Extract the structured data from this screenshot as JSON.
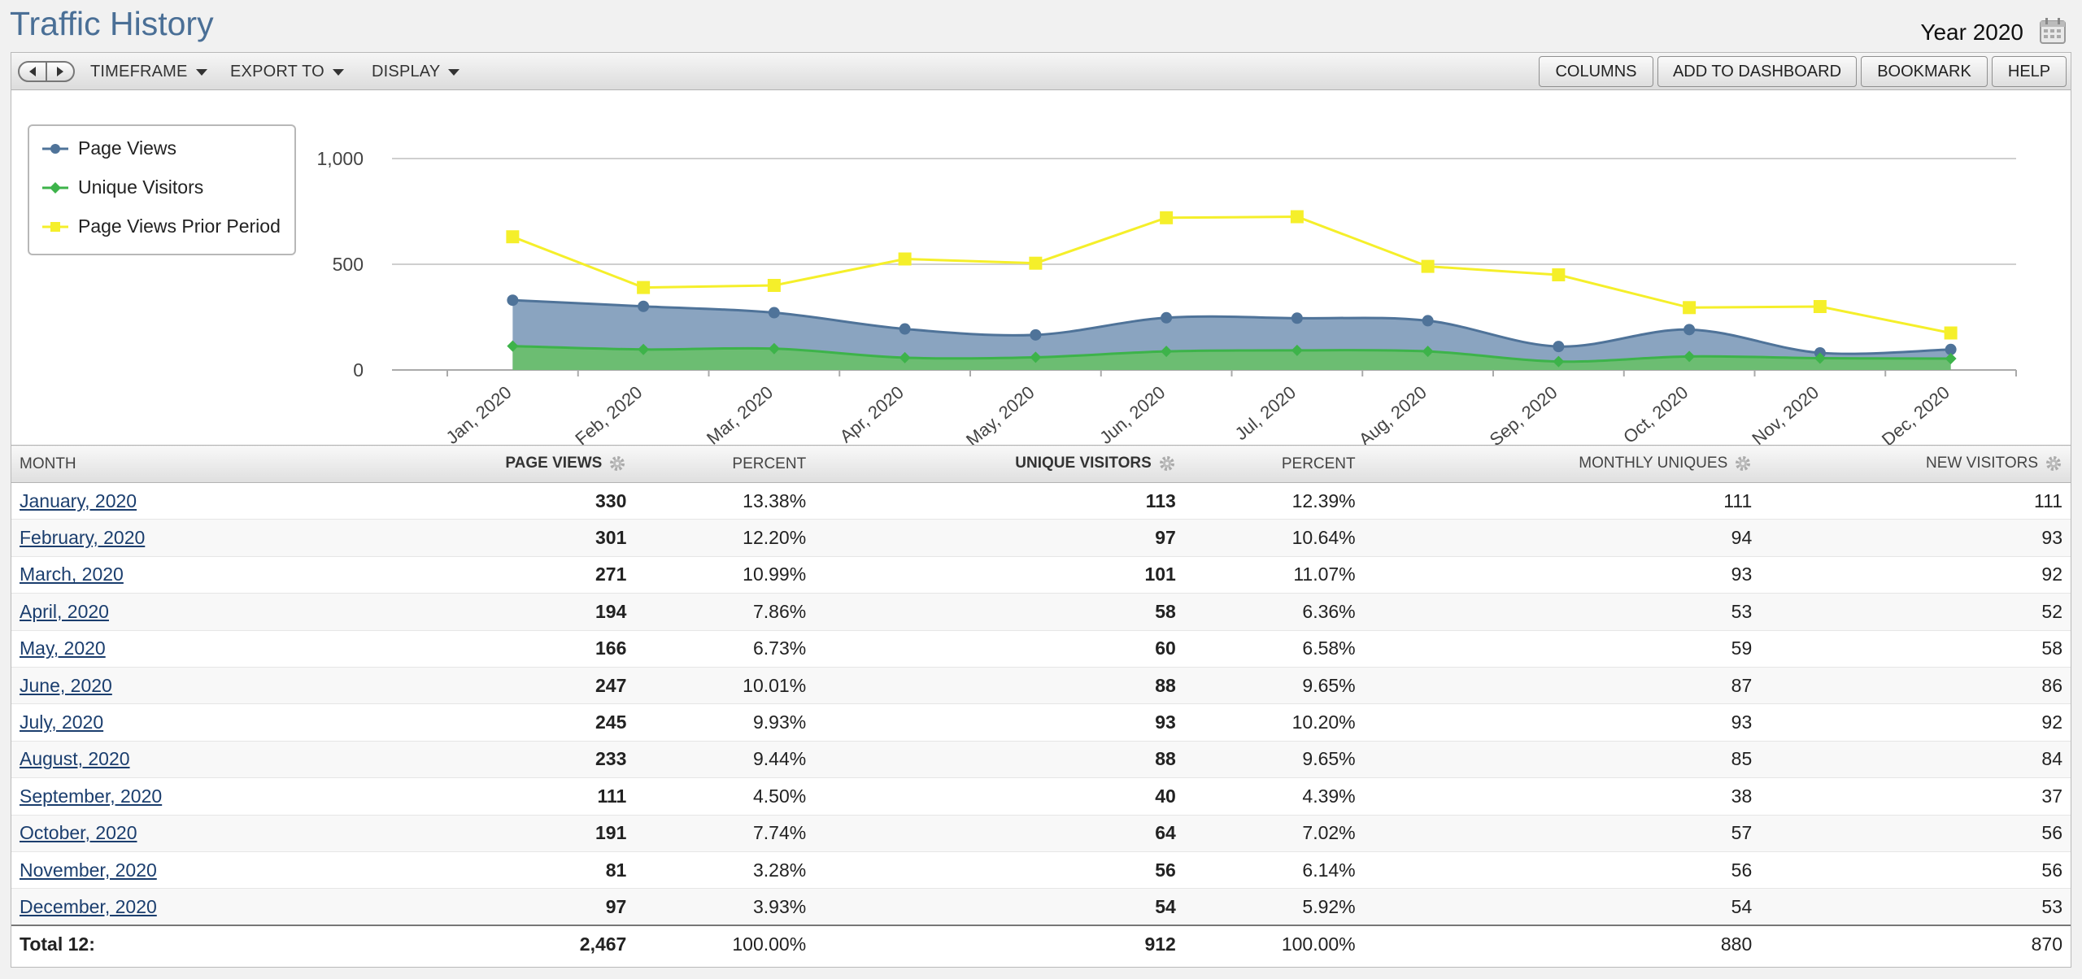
{
  "header": {
    "title": "Traffic History",
    "period": "Year 2020"
  },
  "toolbar": {
    "timeframe": "TIMEFRAME",
    "export": "EXPORT TO",
    "display": "DISPLAY",
    "columns": "COLUMNS",
    "add_to_dashboard": "ADD TO DASHBOARD",
    "bookmark": "BOOKMARK",
    "help": "HELP"
  },
  "legend": [
    {
      "label": "Page Views",
      "color": "#4f7399",
      "marker": "circle"
    },
    {
      "label": "Unique Visitors",
      "color": "#3db34a",
      "marker": "diamond"
    },
    {
      "label": "Page Views Prior Period",
      "color": "#f5ef2a",
      "marker": "square"
    }
  ],
  "chart_data": {
    "type": "area",
    "categories": [
      "Jan, 2020",
      "Feb, 2020",
      "Mar, 2020",
      "Apr, 2020",
      "May, 2020",
      "Jun, 2020",
      "Jul, 2020",
      "Aug, 2020",
      "Sep, 2020",
      "Oct, 2020",
      "Nov, 2020",
      "Dec, 2020"
    ],
    "series": [
      {
        "name": "Page Views",
        "type": "area",
        "color": "#4f7399",
        "values": [
          330,
          301,
          271,
          194,
          166,
          247,
          245,
          233,
          111,
          191,
          81,
          97
        ]
      },
      {
        "name": "Unique Visitors",
        "type": "area",
        "color": "#3db34a",
        "values": [
          113,
          97,
          101,
          58,
          60,
          88,
          93,
          88,
          40,
          64,
          56,
          54
        ]
      },
      {
        "name": "Page Views Prior Period",
        "type": "line",
        "color": "#f5ef2a",
        "values": [
          630,
          390,
          400,
          525,
          505,
          720,
          725,
          490,
          450,
          295,
          300,
          175
        ]
      }
    ],
    "y_ticks": [
      "0",
      "500",
      "1,000"
    ],
    "ylim": [
      0,
      1000
    ],
    "grid": true,
    "legend_position": "top-left"
  },
  "table": {
    "columns": [
      "MONTH",
      "PAGE VIEWS",
      "PERCENT",
      "UNIQUE VISITORS",
      "PERCENT",
      "MONTHLY UNIQUES",
      "NEW VISITORS"
    ],
    "rows": [
      [
        "January, 2020",
        "330",
        "13.38%",
        "113",
        "12.39%",
        "111",
        "111"
      ],
      [
        "February, 2020",
        "301",
        "12.20%",
        "97",
        "10.64%",
        "94",
        "93"
      ],
      [
        "March, 2020",
        "271",
        "10.99%",
        "101",
        "11.07%",
        "93",
        "92"
      ],
      [
        "April, 2020",
        "194",
        "7.86%",
        "58",
        "6.36%",
        "53",
        "52"
      ],
      [
        "May, 2020",
        "166",
        "6.73%",
        "60",
        "6.58%",
        "59",
        "58"
      ],
      [
        "June, 2020",
        "247",
        "10.01%",
        "88",
        "9.65%",
        "87",
        "86"
      ],
      [
        "July, 2020",
        "245",
        "9.93%",
        "93",
        "10.20%",
        "93",
        "92"
      ],
      [
        "August, 2020",
        "233",
        "9.44%",
        "88",
        "9.65%",
        "85",
        "84"
      ],
      [
        "September, 2020",
        "111",
        "4.50%",
        "40",
        "4.39%",
        "38",
        "37"
      ],
      [
        "October, 2020",
        "191",
        "7.74%",
        "64",
        "7.02%",
        "57",
        "56"
      ],
      [
        "November, 2020",
        "81",
        "3.28%",
        "56",
        "6.14%",
        "56",
        "56"
      ],
      [
        "December, 2020",
        "97",
        "3.93%",
        "54",
        "5.92%",
        "54",
        "53"
      ]
    ],
    "total": [
      "Total 12:",
      "2,467",
      "100.00%",
      "912",
      "100.00%",
      "880",
      "870"
    ]
  }
}
